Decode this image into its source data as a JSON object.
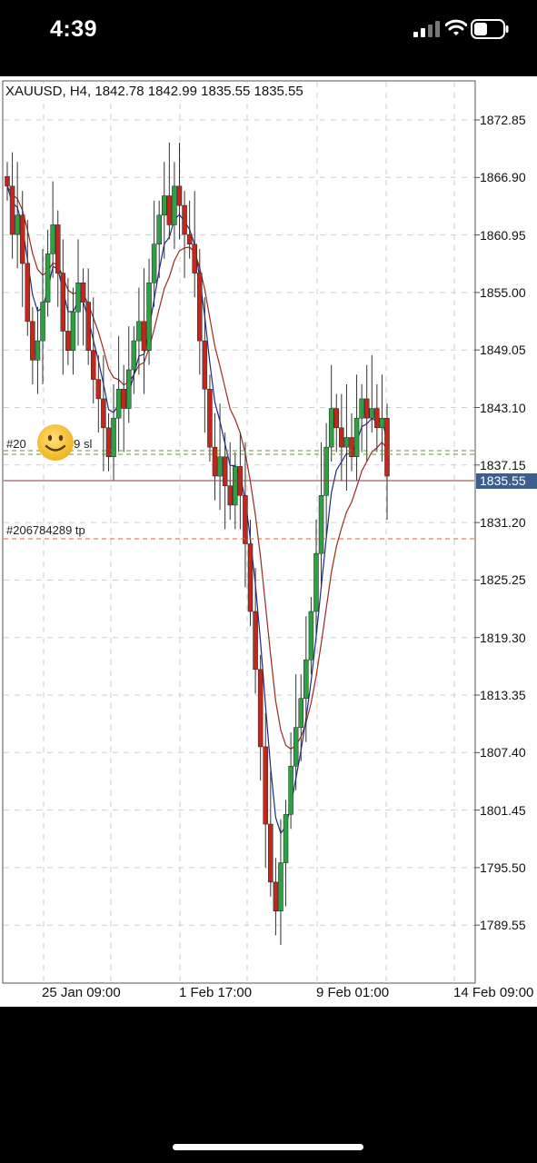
{
  "status_bar": {
    "time": "4:39"
  },
  "chart": {
    "header": "XAUUSD, H4, 1842.78 1842.99 1835.55 1835.55",
    "price_axis": [
      "1872.85",
      "1866.90",
      "1860.95",
      "1855.00",
      "1849.05",
      "1843.10",
      "1837.15",
      "1831.20",
      "1825.25",
      "1819.30",
      "1813.35",
      "1807.40",
      "1801.45",
      "1795.50",
      "1789.55"
    ],
    "current_price": "1835.55",
    "time_axis": [
      "25 Jan 09:00",
      "1 Feb 17:00",
      "9 Feb 01:00",
      "14 Feb 09:00"
    ],
    "orders": {
      "sl_label": "#20",
      "sl_suffix": "89 sl",
      "tp_label": "#206784289 tp"
    },
    "colors": {
      "bull": "#2ea043",
      "bear": "#c0281e",
      "ma_fast": "#1c2a8c",
      "ma_slow": "#9a2a22",
      "current_price_line": "#8a3c3c",
      "sl_line": "#6b8f3a",
      "tp_line": "#e0623a",
      "grid": "#cfcfcf"
    }
  }
}
